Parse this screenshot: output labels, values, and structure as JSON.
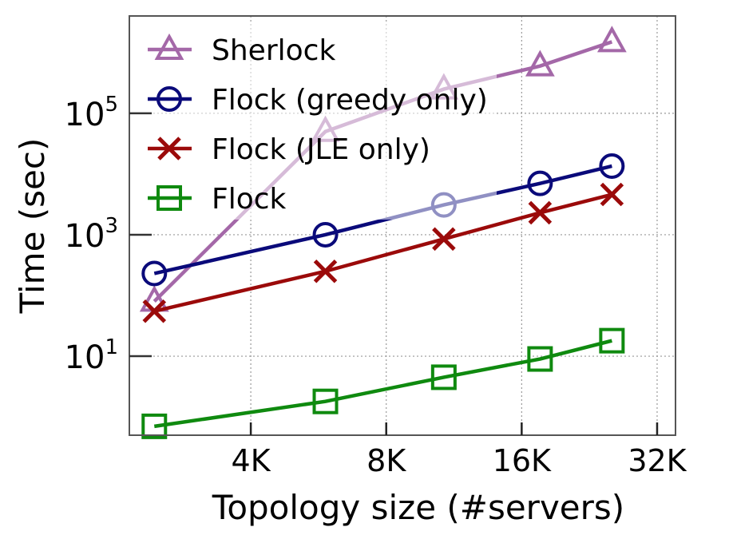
{
  "chart_data": {
    "type": "line",
    "xlabel": "Topology size (#servers)",
    "ylabel": "Time (sec)",
    "x_scale": "log2",
    "y_scale": "log10",
    "xlim": [
      2200,
      36000
    ],
    "ylim": [
      0.5,
      4000000
    ],
    "x_ticks": [
      {
        "value": 4096,
        "label": "4K"
      },
      {
        "value": 8192,
        "label": "8K"
      },
      {
        "value": 16384,
        "label": "16K"
      },
      {
        "value": 32768,
        "label": "32K"
      }
    ],
    "y_ticks": [
      {
        "value": 10,
        "base": "10",
        "exp": "1"
      },
      {
        "value": 1000,
        "base": "10",
        "exp": "3"
      },
      {
        "value": 100000,
        "base": "10",
        "exp": "5"
      }
    ],
    "grid": true,
    "legend_position": "top-left",
    "x": [
      2500,
      6000,
      11000,
      18000,
      26000
    ],
    "series": [
      {
        "name": "Sherlock",
        "marker": "triangle",
        "color": "#a468a8",
        "values": [
          80,
          50000,
          250000,
          600000,
          1500000
        ]
      },
      {
        "name": "Flock (greedy only)",
        "marker": "circle",
        "color": "#0a0a7a",
        "values": [
          230,
          1000,
          3100,
          7000,
          13500
        ]
      },
      {
        "name": "Flock (JLE only)",
        "marker": "x",
        "color": "#9b0a0a",
        "values": [
          55,
          250,
          850,
          2300,
          4600
        ]
      },
      {
        "name": "Flock",
        "marker": "square",
        "color": "#0f8a0f",
        "values": [
          0.7,
          1.8,
          4.5,
          9,
          18
        ]
      }
    ]
  }
}
